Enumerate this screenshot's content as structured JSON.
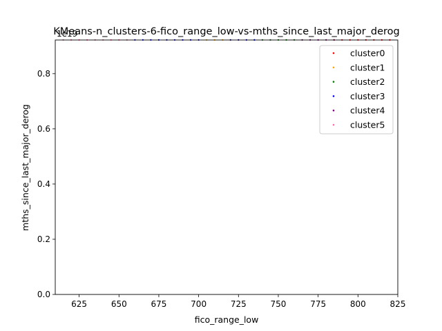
{
  "chart_data": {
    "type": "scatter",
    "title": "KMeans-n_clusters-6-fico_range_low-vs-mths_since_last_major_derog",
    "xlabel": "fico_range_low",
    "ylabel": "mths_since_last_major_derog",
    "y_offset_label": "1e19",
    "xlim": [
      610,
      825
    ],
    "ylim": [
      0,
      0.922
    ],
    "x_ticks": [
      625,
      650,
      675,
      700,
      725,
      750,
      775,
      800,
      825
    ],
    "y_ticks": [
      0.0,
      0.2,
      0.4,
      0.6,
      0.8
    ],
    "y_tick_labels": [
      "0.0",
      "0.2",
      "0.4",
      "0.6",
      "0.8"
    ],
    "legend_position": "top-right",
    "series": [
      {
        "name": "cluster0",
        "color": "#ff0000",
        "x": [
          785,
          790,
          795,
          800,
          805,
          810,
          815,
          820
        ],
        "y": [
          0.9223,
          0.9223,
          0.9223,
          0.9223,
          0.9223,
          0.9223,
          0.9223,
          0.9223
        ]
      },
      {
        "name": "cluster1",
        "color": "#ffa500",
        "x": [
          705,
          710,
          715,
          720,
          725,
          730
        ],
        "y": [
          0.9223,
          0.9223,
          0.9223,
          0.9223,
          0.9223,
          0.9223
        ]
      },
      {
        "name": "cluster2",
        "color": "#008000",
        "x": [
          735,
          740,
          745,
          750,
          755,
          760
        ],
        "y": [
          0.9223,
          0.9223,
          0.9223,
          0.9223,
          0.9223,
          0.9223
        ]
      },
      {
        "name": "cluster3",
        "color": "#0000ff",
        "x": [
          660,
          665,
          670,
          675,
          680,
          685,
          690,
          695,
          700,
          720,
          725,
          730,
          735
        ],
        "y": [
          0.9223,
          0.9223,
          0.9223,
          0.9223,
          0.9223,
          0.9223,
          0.9223,
          0.9223,
          0.9223,
          0.9223,
          0.9223,
          0.9223,
          0.9223
        ]
      },
      {
        "name": "cluster4",
        "color": "#800080",
        "x": [
          765,
          770,
          775,
          780,
          785
        ],
        "y": [
          0.9223,
          0.9223,
          0.9223,
          0.9223,
          0.9223
        ]
      },
      {
        "name": "cluster5",
        "color": "#ff69b4",
        "x": [
          615,
          620,
          625,
          630,
          635,
          640,
          645,
          650,
          655
        ],
        "y": [
          0.9223,
          0.9223,
          0.9223,
          0.9223,
          0.9223,
          0.9223,
          0.9223,
          0.9223,
          0.9223
        ]
      }
    ]
  }
}
